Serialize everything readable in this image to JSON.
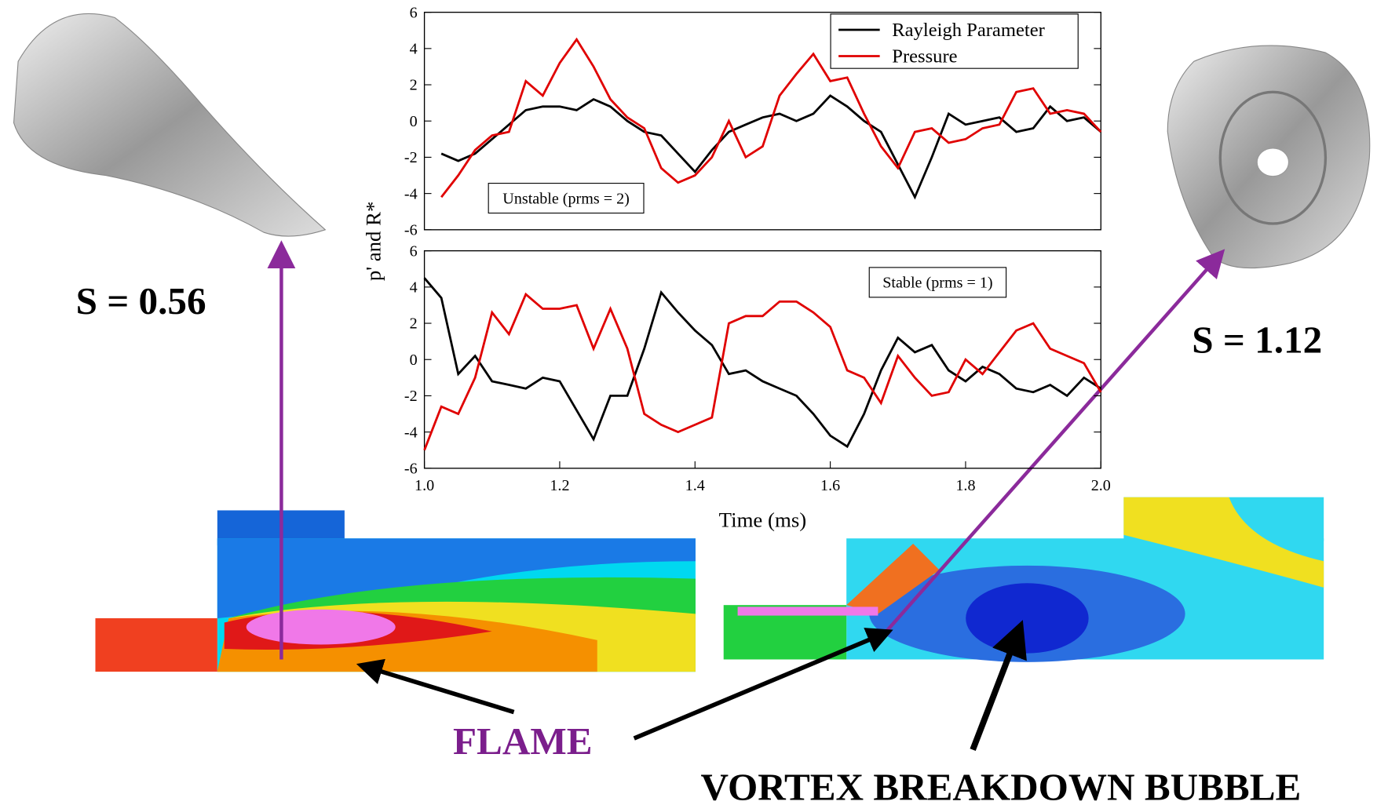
{
  "chart_data": [
    {
      "type": "line",
      "ylabel": "p' and R*",
      "annotation": "Unstable (prms = 2)",
      "legend": "upper right",
      "xlim": [
        1,
        2
      ],
      "ylim": [
        -6,
        6
      ],
      "yticks": [
        -6,
        -4,
        -2,
        0,
        2,
        4,
        6
      ],
      "x": [
        1.025,
        1.05,
        1.075,
        1.1,
        1.125,
        1.15,
        1.175,
        1.2,
        1.225,
        1.25,
        1.275,
        1.3,
        1.325,
        1.35,
        1.375,
        1.4,
        1.425,
        1.45,
        1.475,
        1.5,
        1.525,
        1.55,
        1.575,
        1.6,
        1.625,
        1.65,
        1.675,
        1.7,
        1.725,
        1.75,
        1.775,
        1.8,
        1.825,
        1.85,
        1.875,
        1.9,
        1.925,
        1.95,
        1.975,
        2.0
      ],
      "series": [
        {
          "name": "Rayleigh Parameter",
          "color": "#000000",
          "values": [
            -1.8,
            -2.2,
            -1.8,
            -1.0,
            -0.2,
            0.6,
            0.8,
            0.8,
            0.6,
            1.2,
            0.8,
            0,
            -0.6,
            -0.8,
            -1.8,
            -2.8,
            -1.6,
            -0.6,
            -0.2,
            0.2,
            0.4,
            0,
            0.4,
            1.4,
            0.8,
            0,
            -0.6,
            -2.4,
            -4.2,
            -2.0,
            0.4,
            -0.2,
            0,
            0.2,
            -0.6,
            -0.4,
            0.8,
            0,
            0.2,
            -0.6
          ]
        },
        {
          "name": "Pressure",
          "color": "#e00000",
          "values": [
            -4.2,
            -3.0,
            -1.6,
            -0.8,
            -0.6,
            2.2,
            1.4,
            3.2,
            4.5,
            3.0,
            1.2,
            0.2,
            -0.4,
            -2.6,
            -3.4,
            -3.0,
            -2.0,
            0,
            -2.0,
            -1.4,
            1.4,
            2.6,
            3.7,
            2.2,
            2.4,
            0.4,
            -1.4,
            -2.6,
            -0.6,
            -0.4,
            -1.2,
            -1.0,
            -0.4,
            -0.2,
            1.6,
            1.8,
            0.4,
            0.6,
            0.4,
            -0.6
          ]
        }
      ]
    },
    {
      "type": "line",
      "xlabel": "Time (ms)",
      "annotation": "Stable (prms = 1)",
      "xlim": [
        1,
        2
      ],
      "ylim": [
        -6,
        6
      ],
      "yticks": [
        -6,
        -4,
        -2,
        0,
        2,
        4,
        6
      ],
      "xticks": [
        {
          "value": 1,
          "label": "1.0"
        },
        1.2,
        1.4,
        1.6,
        1.8,
        {
          "value": 2,
          "label": "2.0"
        }
      ],
      "x": [
        1.0,
        1.025,
        1.05,
        1.075,
        1.1,
        1.125,
        1.15,
        1.175,
        1.2,
        1.225,
        1.25,
        1.275,
        1.3,
        1.325,
        1.35,
        1.375,
        1.4,
        1.425,
        1.45,
        1.475,
        1.5,
        1.525,
        1.55,
        1.575,
        1.6,
        1.625,
        1.65,
        1.675,
        1.7,
        1.725,
        1.75,
        1.775,
        1.8,
        1.825,
        1.85,
        1.875,
        1.9,
        1.925,
        1.95,
        1.975,
        2.0
      ],
      "series": [
        {
          "color": "#000000",
          "values": [
            4.5,
            3.4,
            -0.8,
            0.2,
            -1.2,
            -1.4,
            -1.6,
            -1.0,
            -1.2,
            -2.8,
            -4.4,
            -2.0,
            -2.0,
            0.6,
            3.7,
            2.6,
            1.6,
            0.8,
            -0.8,
            -0.6,
            -1.2,
            -1.6,
            -2.0,
            -3.0,
            -4.2,
            -4.8,
            -3.0,
            -0.6,
            1.2,
            0.4,
            0.8,
            -0.6,
            -1.2,
            -0.4,
            -0.8,
            -1.6,
            -1.8,
            -1.4,
            -2.0,
            -1.0,
            -1.6
          ]
        },
        {
          "color": "#e00000",
          "values": [
            -5.0,
            -2.6,
            -3.0,
            -1.0,
            2.6,
            1.4,
            3.6,
            2.8,
            2.8,
            3.0,
            0.6,
            2.8,
            0.6,
            -3.0,
            -3.6,
            -4.0,
            -3.6,
            -3.2,
            2.0,
            2.4,
            2.4,
            3.2,
            3.2,
            2.6,
            1.8,
            -0.6,
            -1.0,
            -2.4,
            0.2,
            -1.0,
            -2.0,
            -1.8,
            0,
            -0.8,
            0.4,
            1.6,
            2.0,
            0.6,
            0.2,
            -0.2,
            -1.8
          ]
        }
      ]
    }
  ],
  "annotations": [
    "S = 0.56",
    "S = 1.12",
    "FLAME",
    "VORTEX BREAKDOWN BUBBLE"
  ]
}
